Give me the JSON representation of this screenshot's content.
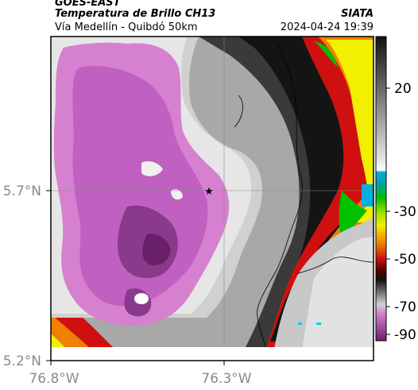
{
  "header": {
    "satellite": "GOES-EAST",
    "product": "Temperatura de Brillo CH13",
    "region": "Vía Medellín - Quibdó 50km",
    "agency": "SIATA",
    "datetime": "2024-04-24 19:39"
  },
  "axes": {
    "lat_ticks": [
      "5.7°N",
      "5.2°N"
    ],
    "lon_ticks": [
      "76.8°W",
      "76.3°W"
    ]
  },
  "colorbar": {
    "ticks": [
      "20",
      "-30",
      "-50",
      "-70",
      "-90"
    ],
    "colors": {
      "cold": "#6a1f6a",
      "magenta": "#d680d0",
      "red": "#d01010",
      "yellow": "#f0f000",
      "green": "#00c000",
      "cyan": "#00b0e0",
      "gray": "#808080",
      "black": "#111111"
    }
  },
  "map": {
    "marker": "star-icon"
  }
}
